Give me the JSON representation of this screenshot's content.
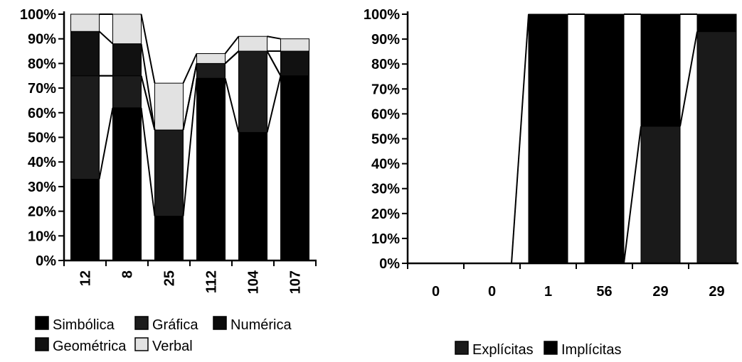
{
  "chart_data": [
    {
      "type": "bar",
      "stacked": "percent",
      "categories": [
        "12",
        "8",
        "25",
        "112",
        "104",
        "107"
      ],
      "ylim": [
        0,
        100
      ],
      "y_ticks": [
        "0%",
        "10%",
        "20%",
        "30%",
        "40%",
        "50%",
        "60%",
        "70%",
        "80%",
        "90%",
        "100%"
      ],
      "series": [
        {
          "name": "Simbólica",
          "color": "#000000",
          "values": [
            33,
            62,
            18,
            74,
            52,
            75
          ]
        },
        {
          "name": "Gráfica",
          "color": "#1c1c1c",
          "values": [
            42,
            13,
            35,
            6,
            33,
            0
          ]
        },
        {
          "name": "Numérica",
          "color": "#0a0a0a",
          "values": [
            0,
            0,
            0,
            0,
            0,
            0
          ]
        },
        {
          "name": "Geométrica",
          "color": "#111111",
          "values": [
            18,
            13,
            0,
            0,
            0,
            10
          ]
        },
        {
          "name": "Verbal",
          "color": "#e2e2e2",
          "values": [
            7,
            12,
            19,
            4,
            6,
            5
          ]
        }
      ],
      "legend": [
        "Simbólica",
        "Gráfica",
        "Numérica",
        "Geométrica",
        "Verbal"
      ],
      "legend_position": "bottom",
      "grid": false
    },
    {
      "type": "bar",
      "stacked": "percent",
      "categories": [
        "0",
        "0",
        "1",
        "56",
        "29",
        "29"
      ],
      "ylim": [
        0,
        100
      ],
      "y_ticks": [
        "0%",
        "10%",
        "20%",
        "30%",
        "40%",
        "50%",
        "60%",
        "70%",
        "80%",
        "90%",
        "100%"
      ],
      "series": [
        {
          "name": "Explícitas",
          "color": "#1a1a1a",
          "values": [
            0,
            0,
            0,
            0,
            55,
            93
          ]
        },
        {
          "name": "Implícitas",
          "color": "#000000",
          "values": [
            0,
            0,
            100,
            100,
            45,
            7
          ]
        }
      ],
      "legend": [
        "Explícitas",
        "Implícitas"
      ],
      "legend_position": "bottom",
      "grid": false
    }
  ]
}
